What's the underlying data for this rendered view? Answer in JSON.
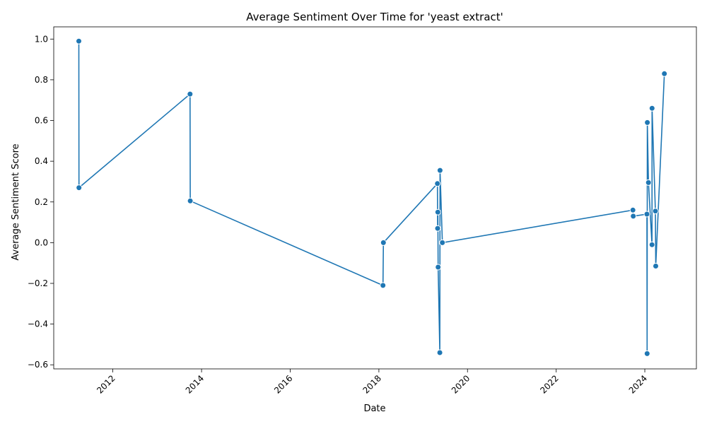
{
  "chart_data": {
    "type": "line",
    "title": "Average Sentiment Over Time for 'yeast extract'",
    "xlabel": "Date",
    "ylabel": "Average Sentiment Score",
    "x_ticks": [
      "2012",
      "2014",
      "2016",
      "2018",
      "2020",
      "2022",
      "2024"
    ],
    "y_ticks": [
      "−0.6",
      "−0.4",
      "−0.2",
      "0.0",
      "0.2",
      "0.4",
      "0.6",
      "0.8",
      "1.0"
    ],
    "xlim": [
      "2010-09-01",
      "2025-03-01"
    ],
    "ylim": [
      -0.62,
      1.06
    ],
    "grid": false,
    "color": "#1f77b4",
    "series": [
      {
        "x": [
          "2011-03-27",
          "2011-03-28",
          "2013-09-28",
          "2013-09-30",
          "2018-02-04",
          "2018-02-07",
          "2019-04-28",
          "2019-04-30",
          "2019-05-02",
          "2019-05-04",
          "2019-05-18",
          "2019-05-20",
          "2019-06-08",
          "2023-09-25",
          "2023-09-28",
          "2024-01-18",
          "2024-01-20",
          "2024-01-22",
          "2024-01-31",
          "2024-02-29",
          "2024-03-01",
          "2024-03-28",
          "2024-03-31",
          "2024-06-10"
        ],
        "y": [
          0.99,
          0.27,
          0.73,
          0.205,
          -0.21,
          0.0,
          0.29,
          0.07,
          0.15,
          -0.12,
          -0.54,
          0.355,
          0.0,
          0.16,
          0.13,
          0.14,
          -0.545,
          0.59,
          0.295,
          -0.01,
          0.66,
          0.155,
          -0.115,
          0.83
        ]
      }
    ]
  }
}
